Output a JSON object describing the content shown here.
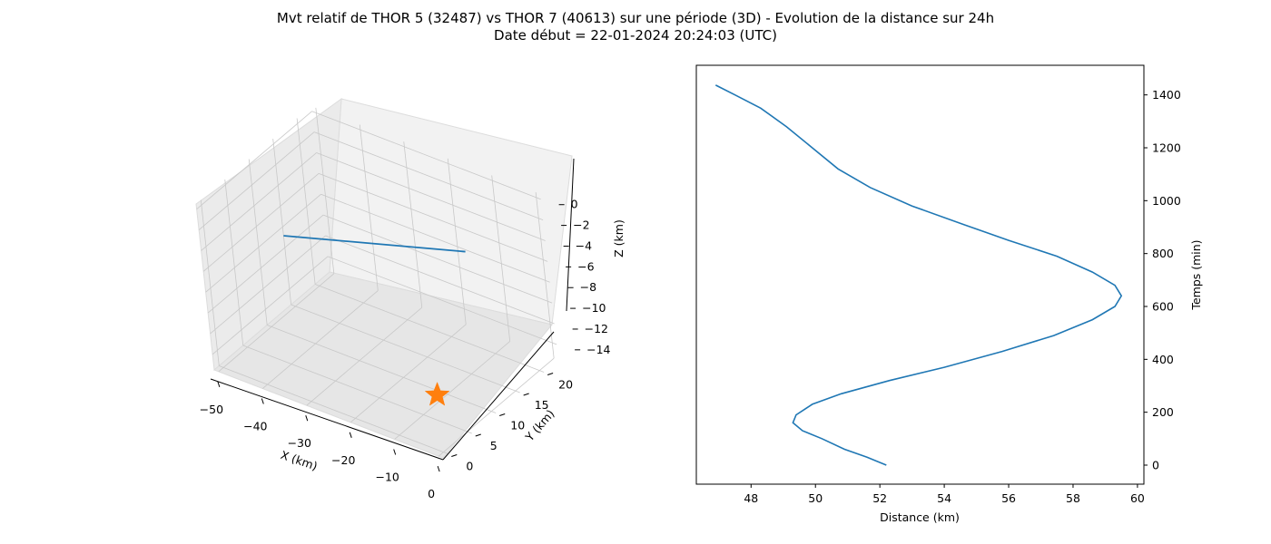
{
  "title_line1": "Mvt relatif de THOR 5 (32487) vs THOR 7 (40613) sur une période (3D) - Evolution de la distance sur 24h",
  "title_line2": "Date début = 22-01-2024 20:24:03 (UTC)",
  "chart_data": [
    {
      "type": "line3d",
      "xlabel": "X (km)",
      "ylabel": "Y (km)",
      "zlabel": "Z (km)",
      "x_ticks": [
        "−50",
        "−40",
        "−30",
        "−20",
        "−10",
        "0"
      ],
      "y_ticks": [
        "0",
        "5",
        "10",
        "15",
        "20"
      ],
      "z_ticks": [
        "0",
        "−2",
        "−4",
        "−6",
        "−8",
        "−10",
        "−12",
        "−14"
      ],
      "xlim": [
        -51,
        1
      ],
      "ylim": [
        -1,
        23
      ],
      "zlim": [
        -15.5,
        0.5
      ],
      "grid": true,
      "series": [
        {
          "type": "line",
          "color": "#1f77b4",
          "points": [
            {
              "x": -49,
              "y": 13.4,
              "z": -7.9
            },
            {
              "x": -17,
              "y": 22.0,
              "z": -7.6
            }
          ]
        },
        {
          "type": "marker",
          "marker": "star",
          "color": "#ff7f0e",
          "points": [
            {
              "x": 0,
              "y": 0,
              "z": -10
            }
          ]
        }
      ]
    },
    {
      "type": "line",
      "xlabel": "Distance (km)",
      "ylabel": "Temps (min)",
      "y_axis_side": "right",
      "xlim": [
        46.3,
        60.2
      ],
      "ylim": [
        -72,
        1512
      ],
      "x_ticks": [
        48,
        50,
        52,
        54,
        56,
        58,
        60
      ],
      "y_ticks": [
        0,
        200,
        400,
        600,
        800,
        1000,
        1200,
        1400
      ],
      "grid": false,
      "series": [
        {
          "color": "#1f77b4",
          "points": [
            [
              52.2,
              0
            ],
            [
              51.6,
              30
            ],
            [
              50.9,
              60
            ],
            [
              50.2,
              100
            ],
            [
              49.6,
              130
            ],
            [
              49.3,
              160
            ],
            [
              49.4,
              190
            ],
            [
              49.9,
              230
            ],
            [
              50.8,
              270
            ],
            [
              52.3,
              320
            ],
            [
              54.0,
              370
            ],
            [
              55.8,
              430
            ],
            [
              57.4,
              490
            ],
            [
              58.6,
              550
            ],
            [
              59.3,
              600
            ],
            [
              59.5,
              640
            ],
            [
              59.3,
              680
            ],
            [
              58.6,
              730
            ],
            [
              57.5,
              790
            ],
            [
              56.0,
              850
            ],
            [
              54.6,
              910
            ],
            [
              53.0,
              980
            ],
            [
              51.7,
              1050
            ],
            [
              50.7,
              1120
            ],
            [
              49.9,
              1200
            ],
            [
              49.1,
              1280
            ],
            [
              48.3,
              1350
            ],
            [
              47.5,
              1400
            ],
            [
              46.9,
              1437
            ]
          ]
        }
      ]
    }
  ]
}
